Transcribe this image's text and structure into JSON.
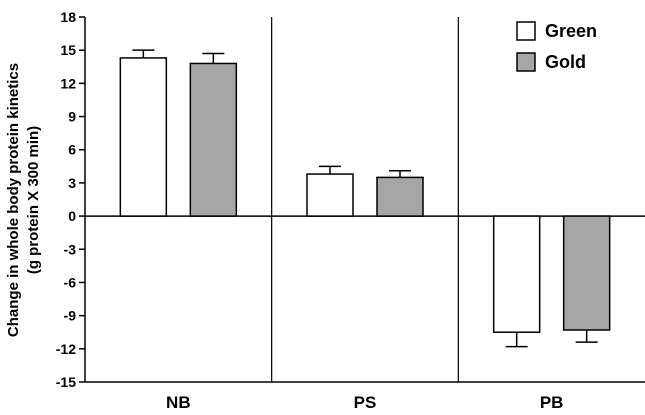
{
  "chart_data": {
    "type": "bar",
    "categories": [
      "NB",
      "PS",
      "PB"
    ],
    "series": [
      {
        "name": "Green",
        "color": "#ffffff",
        "values": [
          14.3,
          3.8,
          -10.5
        ],
        "errors": [
          0.7,
          0.7,
          1.3
        ]
      },
      {
        "name": "Gold",
        "color": "#a6a6a6",
        "values": [
          13.8,
          3.5,
          -10.3
        ],
        "errors": [
          0.9,
          0.6,
          1.1
        ]
      }
    ],
    "ylabel_lines": [
      "Change in whole body protein kinetics",
      "(g protein X 300 min)"
    ],
    "xlabel": "",
    "ylim": [
      -15,
      18
    ],
    "yticks": [
      "18",
      "15",
      "12",
      "9",
      "6",
      "3",
      "0",
      "-3",
      "-6",
      "-9",
      "-12",
      "-15"
    ],
    "legend_position": "top-right",
    "group_dividers": true,
    "error_bars": "positive direction only"
  }
}
